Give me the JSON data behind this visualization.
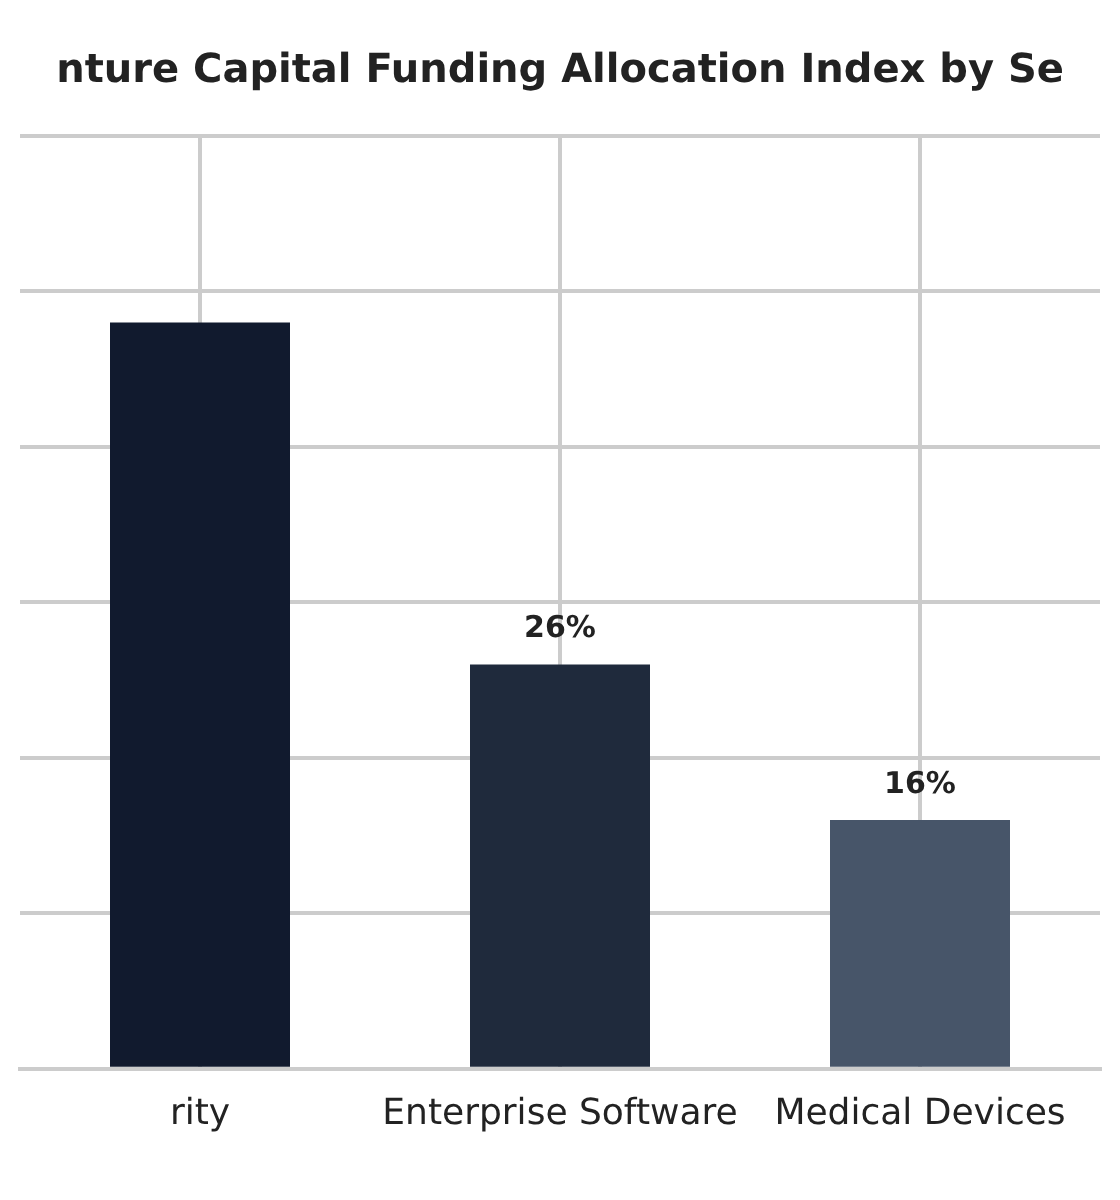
{
  "chart_data": {
    "type": "bar",
    "title": "nture Capital Funding Allocation Index by Se",
    "categories": [
      "rity",
      "Enterprise Software",
      "Medical Devices"
    ],
    "values": [
      48,
      26,
      16
    ],
    "colors": [
      "#111a2e",
      "#1f2a3c",
      "#475569"
    ],
    "value_labels": [
      null,
      "26%",
      "16%"
    ],
    "ylim": [
      0,
      60
    ],
    "yticks": [
      {
        "value": 0,
        "label": null
      },
      {
        "value": 10,
        "label": null
      },
      {
        "value": 20,
        "label": null
      },
      {
        "value": 30,
        "label": null
      },
      {
        "value": 40,
        "label": null
      },
      {
        "value": 50,
        "label": null
      },
      {
        "value": 60,
        "label": null
      }
    ],
    "tick_labels": "x",
    "grid": true,
    "legend": false
  }
}
